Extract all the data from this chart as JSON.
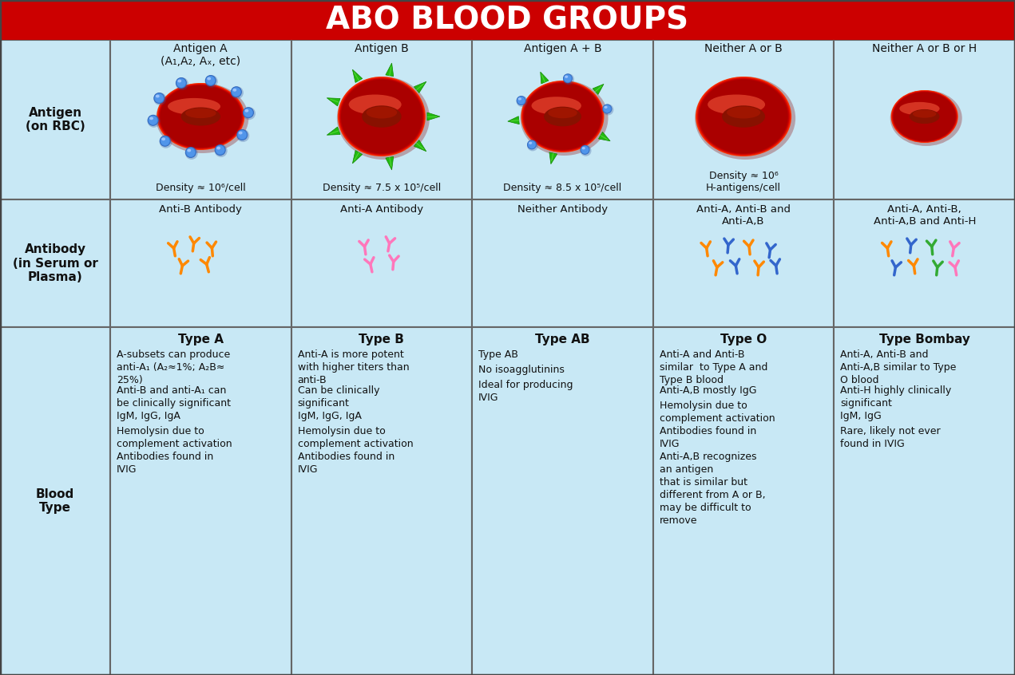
{
  "title": "ABO BLOOD GROUPS",
  "title_bg": "#CC0000",
  "title_color": "#FFFFFF",
  "bg_color": "#C8E8F5",
  "border_color": "#666666",
  "row_labels": [
    "Antigen\n(on RBC)",
    "Antibody\n(in Serum or\nPlasma)",
    "Blood\nType"
  ],
  "col_headers": [
    "Antigen A\n(A₁,A₂, Aₓ, etc)",
    "Antigen B",
    "Antigen A + B",
    "Neither A or B",
    "Neither A or B or H"
  ],
  "density_labels": [
    "Density ≈ 10⁶/cell",
    "Density ≈ 7.5 x 10⁵/cell",
    "Density ≈ 8.5 x 10⁵/cell",
    "Density ≈ 10⁶\nH-antigens/cell",
    ""
  ],
  "antibody_labels": [
    "Anti-B Antibody",
    "Anti-A Antibody",
    "Neither Antibody",
    "Anti-A, Anti-B and\nAnti-A,B",
    "Anti-A, Anti-B,\nAnti-A,B and Anti-H"
  ],
  "blood_type_headers": [
    "Type A",
    "Type B",
    "Type AB",
    "Type O",
    "Type Bombay"
  ],
  "blood_type_paragraphs": [
    [
      "A-subsets can produce\nanti-A₁ (A₂≈1%; A₂B≈\n25%)",
      "Anti-B and anti-A₁ can\nbe clinically significant",
      "IgM, IgG, IgA",
      "Hemolysin due to\ncomplement activation",
      "Antibodies found in\nIVIG"
    ],
    [
      "Anti-A is more potent\nwith higher titers than\nanti-B",
      "Can be clinically\nsignificant",
      "IgM, IgG, IgA",
      "Hemolysin due to\ncomplement activation",
      "Antibodies found in\nIVIG"
    ],
    [
      "Type AB",
      "No isoagglutinins",
      "Ideal for producing\nIVIG"
    ],
    [
      "Anti-A and Anti-B\nsimilar  to Type A and\nType B blood",
      "Anti-A,B mostly IgG",
      "Hemolysin due to\ncomplement activation",
      "Antibodies found in\nIVIG",
      "Anti-A,B recognizes\nan antigen\nthat is similar but\ndifferent from A or B,\nmay be difficult to\nremove"
    ],
    [
      "Anti-A, Anti-B and\nAnti-A,B similar to Type\nO blood",
      "Anti-H highly clinically\nsignificant",
      "IgM, IgG",
      "Rare, likely not ever\nfound in IVIG"
    ]
  ]
}
